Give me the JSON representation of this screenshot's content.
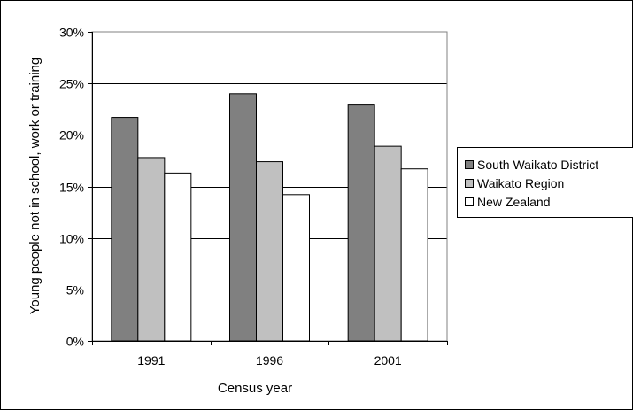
{
  "chart_data": {
    "type": "bar",
    "categories": [
      "1991",
      "1996",
      "2001"
    ],
    "series": [
      {
        "name": "South Waikato District",
        "values": [
          21.7,
          24.0,
          22.9
        ],
        "color": "#808080"
      },
      {
        "name": "Waikato Region",
        "values": [
          17.8,
          17.4,
          18.9
        ],
        "color": "#c0c0c0"
      },
      {
        "name": "New Zealand",
        "values": [
          16.3,
          14.2,
          16.7
        ],
        "color": "#ffffff"
      }
    ],
    "title": "",
    "xlabel": "Census year",
    "ylabel": "Young people not in school, work or training",
    "ylim": [
      0,
      30
    ],
    "ytick_step": 5,
    "y_tick_labels": [
      "0%",
      "5%",
      "10%",
      "15%",
      "20%",
      "25%",
      "30%"
    ],
    "grid": true,
    "legend_position": "right"
  }
}
